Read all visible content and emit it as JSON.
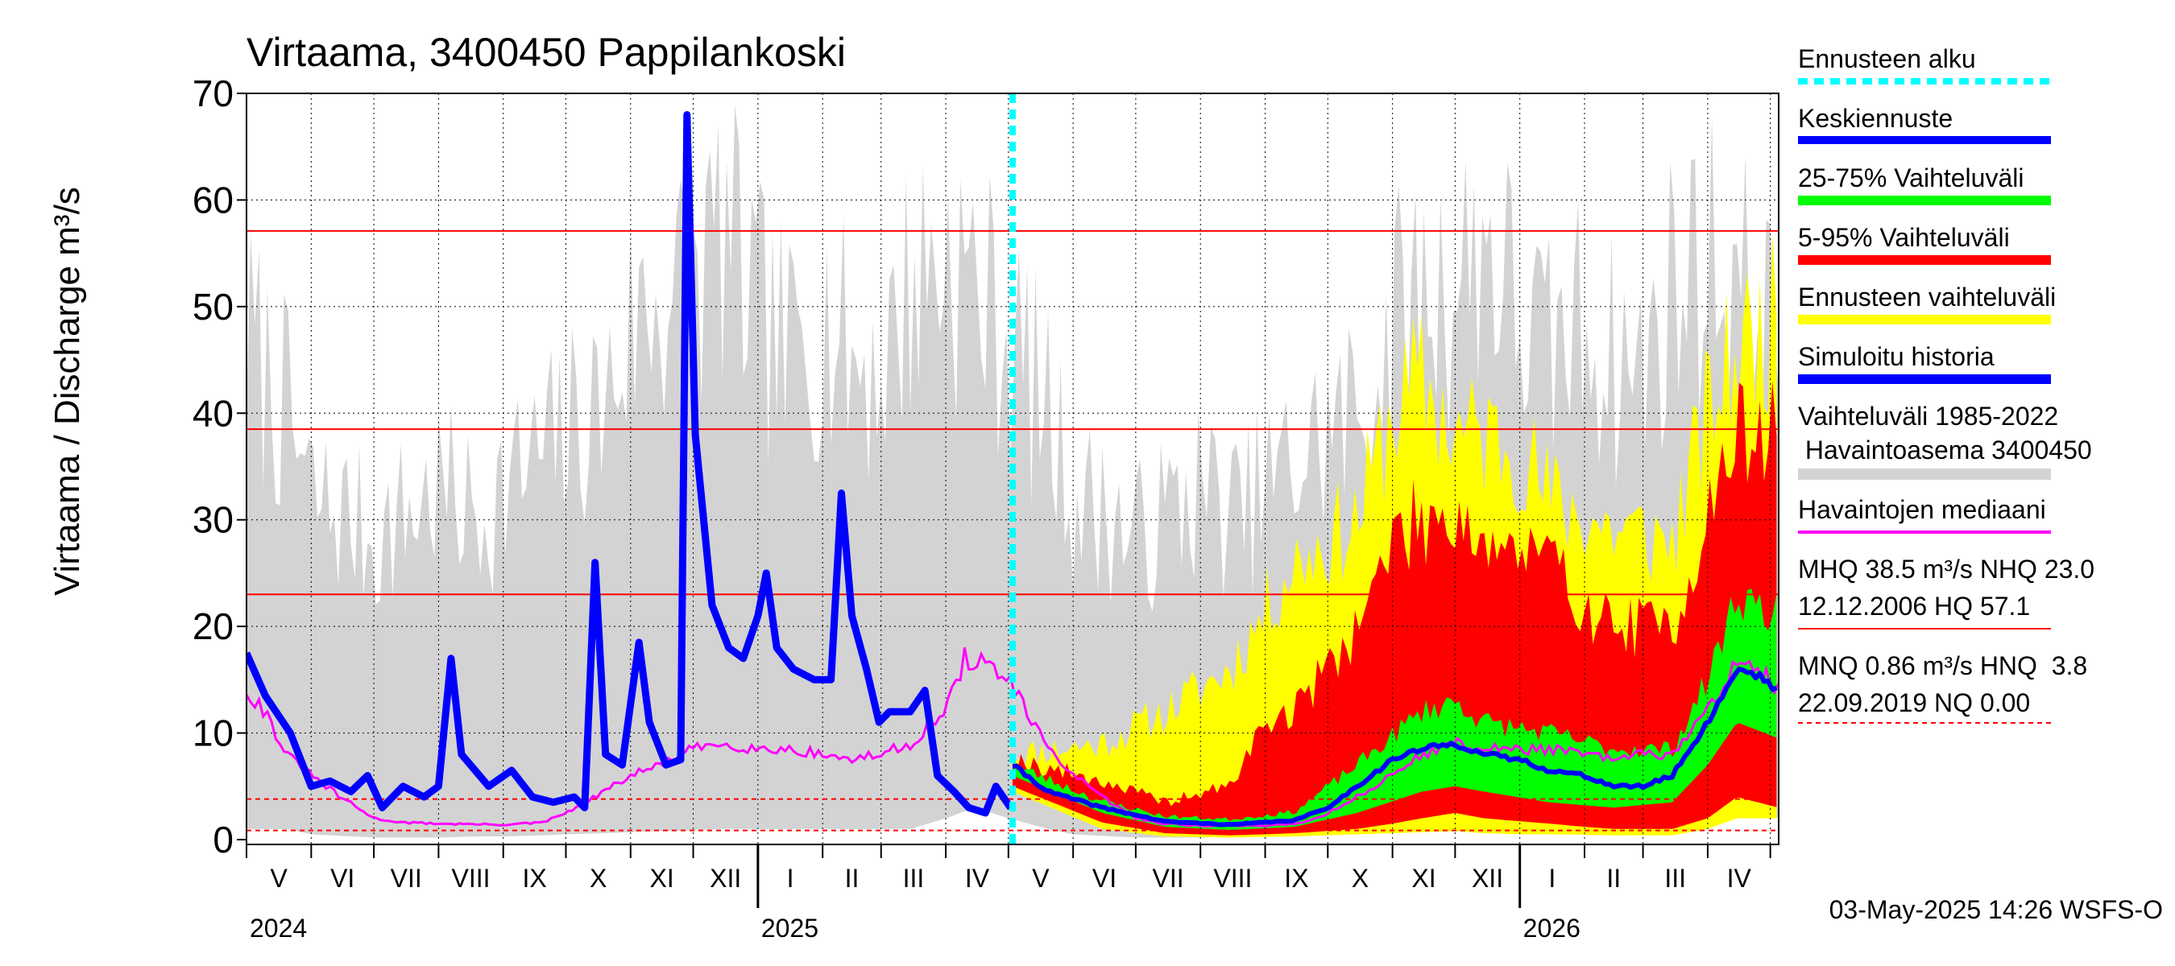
{
  "chart_data": {
    "type": "area",
    "title": "Virtaama, 3400450 Pappilankoski",
    "ylabel": "Virtaama / Discharge",
    "yunit": "m³/s",
    "ylim": [
      0,
      70
    ],
    "yticks": [
      0,
      10,
      20,
      30,
      40,
      50,
      60,
      70
    ],
    "grid": true,
    "legend_position": "right",
    "x_range": [
      "2024-05-01",
      "2026-05-05"
    ],
    "forecast_start": "2025-05-03",
    "month_labels": [
      "V",
      "VI",
      "VII",
      "VIII",
      "IX",
      "X",
      "XI",
      "XII",
      "I",
      "II",
      "III",
      "IV",
      "V",
      "VI",
      "VII",
      "VIII",
      "IX",
      "X",
      "XI",
      "XII",
      "I",
      "II",
      "III",
      "IV"
    ],
    "year_labels": [
      "2024",
      "2025",
      "2026"
    ],
    "reference_lines": {
      "MHQ": 38.5,
      "NHQ": 23.0,
      "HQ": 57.1,
      "MNQ": 0.86,
      "HNQ": 3.8,
      "NQ": 0.0
    },
    "simulated_history": {
      "name": "Simuloitu historia",
      "color": "#0000ff",
      "points": [
        [
          "2024-05-01",
          17.5
        ],
        [
          "2024-05-10",
          13.5
        ],
        [
          "2024-05-22",
          10
        ],
        [
          "2024-06-01",
          5
        ],
        [
          "2024-06-10",
          5.5
        ],
        [
          "2024-06-20",
          4.5
        ],
        [
          "2024-06-28",
          6
        ],
        [
          "2024-07-05",
          3
        ],
        [
          "2024-07-15",
          5
        ],
        [
          "2024-07-25",
          4
        ],
        [
          "2024-08-01",
          5
        ],
        [
          "2024-08-07",
          17
        ],
        [
          "2024-08-12",
          8
        ],
        [
          "2024-08-25",
          5
        ],
        [
          "2024-09-05",
          6.5
        ],
        [
          "2024-09-15",
          4
        ],
        [
          "2024-09-25",
          3.5
        ],
        [
          "2024-10-05",
          4
        ],
        [
          "2024-10-10",
          3
        ],
        [
          "2024-10-15",
          26
        ],
        [
          "2024-10-20",
          8
        ],
        [
          "2024-10-28",
          7
        ],
        [
          "2024-11-05",
          18.5
        ],
        [
          "2024-11-10",
          11
        ],
        [
          "2024-11-18",
          7
        ],
        [
          "2024-11-25",
          7.5
        ],
        [
          "2024-11-28",
          68
        ],
        [
          "2024-12-02",
          38
        ],
        [
          "2024-12-10",
          22
        ],
        [
          "2024-12-18",
          18
        ],
        [
          "2024-12-25",
          17
        ],
        [
          "2025-01-01",
          21
        ],
        [
          "2025-01-05",
          25
        ],
        [
          "2025-01-10",
          18
        ],
        [
          "2025-01-18",
          16
        ],
        [
          "2025-01-28",
          15
        ],
        [
          "2025-02-05",
          15
        ],
        [
          "2025-02-10",
          32.5
        ],
        [
          "2025-02-15",
          21
        ],
        [
          "2025-02-22",
          16
        ],
        [
          "2025-02-28",
          11
        ],
        [
          "2025-03-05",
          12
        ],
        [
          "2025-03-15",
          12
        ],
        [
          "2025-03-22",
          14
        ],
        [
          "2025-03-28",
          6
        ],
        [
          "2025-04-05",
          4.5
        ],
        [
          "2025-04-12",
          3
        ],
        [
          "2025-04-20",
          2.5
        ],
        [
          "2025-04-25",
          5
        ],
        [
          "2025-05-02",
          3
        ]
      ]
    },
    "forecast_mean": {
      "name": "Keskiennuste",
      "color": "#0000ff",
      "points": [
        [
          "2025-05-03",
          7
        ],
        [
          "2025-05-20",
          4.5
        ],
        [
          "2025-06-15",
          3
        ],
        [
          "2025-07-15",
          1.7
        ],
        [
          "2025-08-15",
          1.4
        ],
        [
          "2025-09-15",
          1.8
        ],
        [
          "2025-10-01",
          3
        ],
        [
          "2025-10-15",
          5
        ],
        [
          "2025-11-01",
          7.5
        ],
        [
          "2025-11-15",
          8.5
        ],
        [
          "2025-12-01",
          9
        ],
        [
          "2025-12-15",
          8
        ],
        [
          "2026-01-01",
          7.5
        ],
        [
          "2026-01-15",
          6.5
        ],
        [
          "2026-02-01",
          6
        ],
        [
          "2026-02-15",
          5
        ],
        [
          "2026-03-01",
          5
        ],
        [
          "2026-03-15",
          6
        ],
        [
          "2026-04-01",
          11
        ],
        [
          "2026-04-15",
          16
        ],
        [
          "2026-04-25",
          15.5
        ],
        [
          "2026-05-05",
          14
        ]
      ]
    },
    "band_25_75": {
      "name": "25-75% Vaihteluväli",
      "color": "#00ff00",
      "points": [
        [
          "2025-05-03",
          6,
          7
        ],
        [
          "2025-06-15",
          2.5,
          3.6
        ],
        [
          "2025-07-15",
          1.2,
          2.2
        ],
        [
          "2025-08-15",
          0.9,
          1.9
        ],
        [
          "2025-09-15",
          1.2,
          2.6
        ],
        [
          "2025-10-15",
          2.5,
          7
        ],
        [
          "2025-11-15",
          4.5,
          12
        ],
        [
          "2025-12-01",
          5,
          13
        ],
        [
          "2025-12-15",
          4.5,
          11
        ],
        [
          "2026-01-15",
          3.5,
          10
        ],
        [
          "2026-02-15",
          3,
          8.5
        ],
        [
          "2026-03-15",
          3.5,
          8.5
        ],
        [
          "2026-04-01",
          7,
          15
        ],
        [
          "2026-04-15",
          11,
          23
        ],
        [
          "2026-05-05",
          9.5,
          21
        ]
      ]
    },
    "band_5_95": {
      "name": "5-95% Vaihteluväli",
      "color": "#ff0000",
      "points": [
        [
          "2025-05-03",
          5,
          7.5
        ],
        [
          "2025-06-15",
          1.6,
          5.5
        ],
        [
          "2025-07-15",
          0.6,
          3.5
        ],
        [
          "2025-08-15",
          0.4,
          5
        ],
        [
          "2025-09-01",
          0.5,
          11
        ],
        [
          "2025-09-15",
          0.6,
          12
        ],
        [
          "2025-10-15",
          1,
          20
        ],
        [
          "2025-11-01",
          1.5,
          28
        ],
        [
          "2025-11-15",
          2,
          30
        ],
        [
          "2025-12-01",
          2.5,
          31
        ],
        [
          "2025-12-15",
          2,
          28
        ],
        [
          "2026-01-15",
          1.5,
          26
        ],
        [
          "2026-02-01",
          1.2,
          22
        ],
        [
          "2026-02-15",
          1,
          20
        ],
        [
          "2026-03-15",
          1,
          20
        ],
        [
          "2026-04-01",
          2,
          30
        ],
        [
          "2026-04-15",
          4,
          38
        ],
        [
          "2026-05-05",
          3,
          38
        ]
      ]
    },
    "band_forecast": {
      "name": "Ennusteen vaihteluväli",
      "color": "#ffff00",
      "points": [
        [
          "2025-05-03",
          4.5,
          8
        ],
        [
          "2025-06-15",
          1,
          9
        ],
        [
          "2025-07-15",
          0.3,
          12
        ],
        [
          "2025-08-15",
          0.2,
          16
        ],
        [
          "2025-09-15",
          0.3,
          26
        ],
        [
          "2025-10-15",
          0.5,
          30
        ],
        [
          "2025-11-01",
          0.6,
          40
        ],
        [
          "2025-11-15",
          0.7,
          43
        ],
        [
          "2025-12-01",
          0.8,
          38
        ],
        [
          "2025-12-15",
          0.6,
          38
        ],
        [
          "2026-01-01",
          0.5,
          37
        ],
        [
          "2026-01-15",
          0.5,
          32
        ],
        [
          "2026-02-15",
          0.4,
          29
        ],
        [
          "2026-03-15",
          0.4,
          28
        ],
        [
          "2026-04-01",
          1,
          40
        ],
        [
          "2026-04-15",
          2,
          46
        ],
        [
          "2026-05-05",
          2,
          49
        ]
      ]
    },
    "historical_range": {
      "name": "Vaihteluväli 1985-2022 Havaintoasema 3400450",
      "color": "#d3d3d3",
      "points": [
        [
          "2024-05-01",
          1,
          47
        ],
        [
          "2024-05-20",
          1,
          40
        ],
        [
          "2024-06-01",
          0.5,
          32
        ],
        [
          "2024-06-20",
          0.3,
          30
        ],
        [
          "2024-07-01",
          0.2,
          28
        ],
        [
          "2024-07-20",
          0.2,
          31
        ],
        [
          "2024-08-01",
          0.2,
          33
        ],
        [
          "2024-08-20",
          0.3,
          30
        ],
        [
          "2024-09-01",
          0.3,
          33
        ],
        [
          "2024-09-20",
          0.4,
          36
        ],
        [
          "2024-10-01",
          0.5,
          38
        ],
        [
          "2024-10-20",
          0.6,
          41
        ],
        [
          "2024-11-01",
          0.7,
          48
        ],
        [
          "2024-11-15",
          0.8,
          51
        ],
        [
          "2024-12-01",
          0.9,
          52
        ],
        [
          "2024-12-15",
          1,
          57
        ],
        [
          "2025-01-01",
          1,
          49
        ],
        [
          "2025-01-15",
          1,
          45
        ],
        [
          "2025-02-01",
          1,
          49
        ],
        [
          "2025-02-15",
          1,
          45
        ],
        [
          "2025-03-01",
          1,
          44
        ],
        [
          "2025-03-15",
          1,
          52
        ],
        [
          "2025-04-01",
          2,
          55
        ],
        [
          "2025-04-15",
          3,
          52
        ],
        [
          "2025-05-01",
          2,
          47
        ],
        [
          "2025-05-20",
          1,
          40
        ],
        [
          "2025-06-01",
          0.5,
          32
        ],
        [
          "2025-06-20",
          0.3,
          30
        ],
        [
          "2025-07-01",
          0.2,
          28
        ],
        [
          "2025-07-20",
          0.2,
          31
        ],
        [
          "2025-08-01",
          0.2,
          33
        ],
        [
          "2025-08-20",
          0.3,
          30
        ],
        [
          "2025-09-01",
          0.3,
          33
        ],
        [
          "2025-09-20",
          0.4,
          36
        ],
        [
          "2025-10-01",
          0.5,
          38
        ],
        [
          "2025-10-20",
          0.6,
          41
        ],
        [
          "2025-11-01",
          0.7,
          48
        ],
        [
          "2025-11-15",
          0.8,
          51
        ],
        [
          "2025-12-01",
          0.9,
          52
        ],
        [
          "2025-12-15",
          1,
          57
        ],
        [
          "2026-01-01",
          1,
          49
        ],
        [
          "2026-01-15",
          1,
          45
        ],
        [
          "2026-02-01",
          1,
          49
        ],
        [
          "2026-02-15",
          1,
          45
        ],
        [
          "2026-03-01",
          1,
          44
        ],
        [
          "2026-03-15",
          1,
          52
        ],
        [
          "2026-04-01",
          2,
          55
        ],
        [
          "2026-04-15",
          3,
          52
        ],
        [
          "2026-05-05",
          2,
          47
        ]
      ]
    },
    "observed_median": {
      "name": "Havaintojen mediaani",
      "color": "#ff00ff",
      "points": [
        [
          "2024-05-01",
          14
        ],
        [
          "2024-05-10",
          12
        ],
        [
          "2024-05-20",
          8
        ],
        [
          "2024-06-01",
          6
        ],
        [
          "2024-06-15",
          4
        ],
        [
          "2024-07-01",
          2
        ],
        [
          "2024-07-15",
          1.6
        ],
        [
          "2024-08-01",
          1.5
        ],
        [
          "2024-09-01",
          1.4
        ],
        [
          "2024-09-20",
          1.6
        ],
        [
          "2024-10-01",
          2.5
        ],
        [
          "2024-10-15",
          4
        ],
        [
          "2024-11-01",
          6
        ],
        [
          "2024-11-15",
          7
        ],
        [
          "2024-12-01",
          8.5
        ],
        [
          "2024-12-15",
          9
        ],
        [
          "2025-01-01",
          8.5
        ],
        [
          "2025-01-15",
          8.5
        ],
        [
          "2025-02-01",
          8
        ],
        [
          "2025-02-15",
          7.5
        ],
        [
          "2025-03-01",
          8
        ],
        [
          "2025-03-15",
          9
        ],
        [
          "2025-04-01",
          12
        ],
        [
          "2025-04-10",
          17
        ],
        [
          "2025-04-20",
          16.5
        ],
        [
          "2025-05-01",
          15
        ],
        [
          "2025-05-15",
          10
        ],
        [
          "2025-06-01",
          6
        ],
        [
          "2025-06-15",
          4
        ],
        [
          "2025-07-01",
          2
        ],
        [
          "2025-07-15",
          1.5
        ],
        [
          "2025-08-01",
          1.3
        ],
        [
          "2025-09-01",
          1.3
        ],
        [
          "2025-09-20",
          1.6
        ],
        [
          "2025-10-01",
          2.5
        ],
        [
          "2025-10-15",
          4
        ],
        [
          "2025-11-01",
          6
        ],
        [
          "2025-11-15",
          8
        ],
        [
          "2025-12-01",
          9
        ],
        [
          "2025-12-15",
          8.5
        ],
        [
          "2026-01-01",
          8.5
        ],
        [
          "2026-01-15",
          8.5
        ],
        [
          "2026-02-01",
          8
        ],
        [
          "2026-02-15",
          7.5
        ],
        [
          "2026-03-01",
          8
        ],
        [
          "2026-03-15",
          8
        ],
        [
          "2026-04-01",
          12
        ],
        [
          "2026-04-15",
          17
        ],
        [
          "2026-04-25",
          16
        ],
        [
          "2026-05-05",
          14
        ]
      ]
    }
  },
  "legend": {
    "forecast_start": "Ennusteen alku",
    "mean": "Keskiennuste",
    "band_25_75": "25-75% Vaihteluväli",
    "band_5_95": "5-95% Vaihteluväli",
    "band_forecast": "Ennusteen vaihteluväli",
    "simulated": "Simuloitu historia",
    "hist_line1": "Vaihteluväli 1985-2022",
    "hist_line2": " Havaintoasema 3400450",
    "median": "Havaintojen mediaani",
    "stats_high_1": "MHQ 38.5 m³/s NHQ 23.0",
    "stats_high_2": "12.12.2006 HQ 57.1",
    "stats_low_1": "MNQ 0.86 m³/s HNQ  3.8",
    "stats_low_2": "22.09.2019 NQ 0.00"
  },
  "footer": {
    "timestamp": "03-May-2025 14:26 WSFS-O"
  },
  "colors": {
    "forecast_start_line": "#00ffff",
    "reference_lines": "#ff0000",
    "grid": "#000000"
  }
}
